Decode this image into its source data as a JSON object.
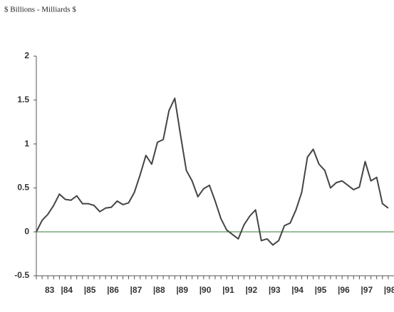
{
  "chart_data": {
    "type": "line",
    "title": "$ Billions  - Milliards $",
    "x": [
      1983,
      1983.25,
      1983.5,
      1983.75,
      1984,
      1984.25,
      1984.5,
      1984.75,
      1985,
      1985.25,
      1985.5,
      1985.75,
      1986,
      1986.25,
      1986.5,
      1986.75,
      1987,
      1987.25,
      1987.5,
      1987.75,
      1988,
      1988.25,
      1988.5,
      1988.75,
      1989,
      1989.25,
      1989.5,
      1989.75,
      1990,
      1990.25,
      1990.5,
      1990.75,
      1991,
      1991.25,
      1991.5,
      1991.75,
      1992,
      1992.25,
      1992.5,
      1992.75,
      1993,
      1993.25,
      1993.5,
      1993.75,
      1994,
      1994.25,
      1994.5,
      1994.75,
      1995,
      1995.25,
      1995.5,
      1995.75,
      1996,
      1996.25,
      1996.5,
      1996.75,
      1997,
      1997.25,
      1997.5,
      1997.75,
      1998,
      1998.25
    ],
    "series": [
      {
        "color": "#444444",
        "values": [
          0.0,
          0.13,
          0.2,
          0.3,
          0.43,
          0.37,
          0.36,
          0.41,
          0.32,
          0.32,
          0.3,
          0.23,
          0.27,
          0.28,
          0.35,
          0.31,
          0.33,
          0.45,
          0.65,
          0.87,
          0.77,
          1.02,
          1.05,
          1.38,
          1.52,
          1.1,
          0.7,
          0.58,
          0.4,
          0.49,
          0.53,
          0.35,
          0.15,
          0.02,
          -0.03,
          -0.08,
          0.08,
          0.18,
          0.25,
          -0.1,
          -0.08,
          -0.15,
          -0.1,
          0.07,
          0.1,
          0.25,
          0.45,
          0.85,
          0.94,
          0.77,
          0.7,
          0.5,
          0.56,
          0.58,
          0.53,
          0.48,
          0.51,
          0.8,
          0.58,
          0.62,
          0.32,
          0.27
        ]
      }
    ],
    "xlim": [
      1983,
      1998.5
    ],
    "xticks": [
      {
        "value": 1983,
        "label": "83"
      },
      {
        "value": 1984,
        "label": "|84"
      },
      {
        "value": 1985,
        "label": "|85"
      },
      {
        "value": 1986,
        "label": "|86"
      },
      {
        "value": 1987,
        "label": "|87"
      },
      {
        "value": 1988,
        "label": "|88"
      },
      {
        "value": 1989,
        "label": "|89"
      },
      {
        "value": 1990,
        "label": "|90"
      },
      {
        "value": 1991,
        "label": "|91"
      },
      {
        "value": 1992,
        "label": "|92"
      },
      {
        "value": 1993,
        "label": "|93"
      },
      {
        "value": 1994,
        "label": "|94"
      },
      {
        "value": 1995,
        "label": "|95"
      },
      {
        "value": 1996,
        "label": "|96"
      },
      {
        "value": 1997,
        "label": "|97"
      },
      {
        "value": 1998,
        "label": "|98"
      }
    ],
    "ylim": [
      -0.5,
      2
    ],
    "yticks": [
      -0.5,
      0,
      0.5,
      1,
      1.5,
      2
    ],
    "zero_line_color": "#4a8a4a"
  }
}
